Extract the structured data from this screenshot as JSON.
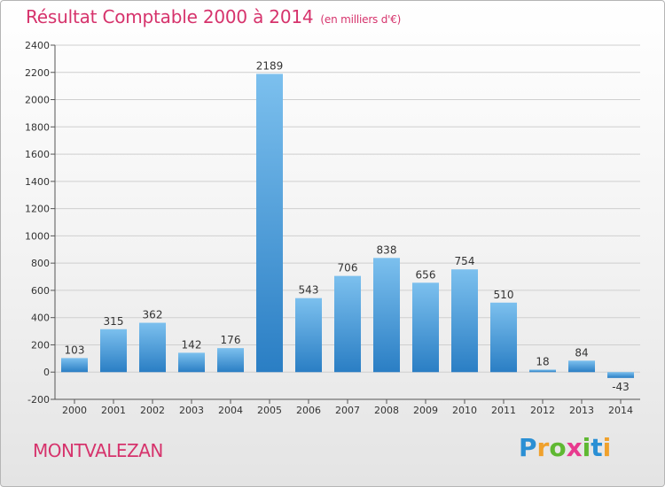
{
  "title": {
    "main": "Résultat Comptable 2000 à 2014",
    "unit": "(en milliers d'€)"
  },
  "commune": "MONTVALEZAN",
  "brand": {
    "letters": [
      "P",
      "r",
      "o",
      "x",
      "i",
      "t",
      "i"
    ],
    "colors": [
      "#2a8fd4",
      "#f0a12c",
      "#5fb832",
      "#e83a8e",
      "#5fb832",
      "#2a8fd4",
      "#f0a12c"
    ]
  },
  "colors": {
    "bar_top": "#7cc0ee",
    "bar_bottom": "#2a7ec4",
    "grid": "#cfcfcf",
    "axis": "#555555",
    "text": "#333333",
    "accent": "#d6336c"
  },
  "chart_data": {
    "type": "bar",
    "title": "Résultat Comptable 2000 à 2014",
    "xlabel": "",
    "ylabel": "",
    "categories": [
      "2000",
      "2001",
      "2002",
      "2003",
      "2004",
      "2005",
      "2006",
      "2007",
      "2008",
      "2009",
      "2010",
      "2011",
      "2012",
      "2013",
      "2014"
    ],
    "values": [
      103,
      315,
      362,
      142,
      176,
      2189,
      543,
      706,
      838,
      656,
      754,
      510,
      18,
      84,
      -43
    ],
    "value_labels": [
      "103",
      "315",
      "362",
      "142",
      "176",
      "2189",
      "543",
      "706",
      "838",
      "656",
      "754",
      "510",
      "18",
      "84",
      "-43"
    ],
    "ylim": [
      -200,
      2400
    ],
    "yticks": [
      -200,
      0,
      200,
      400,
      600,
      800,
      1000,
      1200,
      1400,
      1600,
      1800,
      2000,
      2200,
      2400
    ],
    "grid": true
  }
}
